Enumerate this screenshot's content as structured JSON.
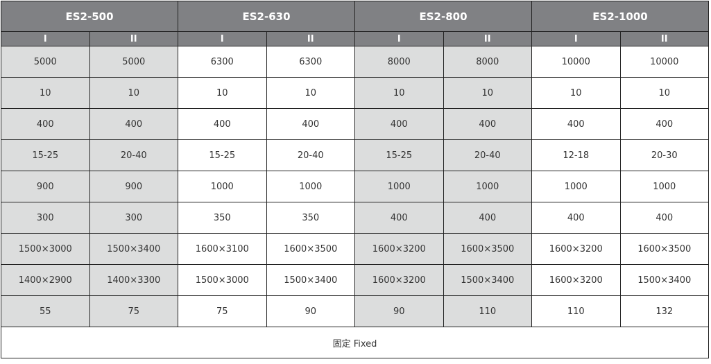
{
  "models": [
    "ES2-500",
    "ES2-630",
    "ES2-800",
    "ES2-1000"
  ],
  "sub_labels": [
    "I",
    "II"
  ],
  "shaded_models": [
    0,
    2
  ],
  "colors": {
    "header_bg": "#808184",
    "shaded_cell": "#dcdddd",
    "header_text": "#ffffff"
  },
  "rows": [
    [
      "5000",
      "5000",
      "6300",
      "6300",
      "8000",
      "8000",
      "10000",
      "10000"
    ],
    [
      "10",
      "10",
      "10",
      "10",
      "10",
      "10",
      "10",
      "10"
    ],
    [
      "400",
      "400",
      "400",
      "400",
      "400",
      "400",
      "400",
      "400"
    ],
    [
      "15-25",
      "20-40",
      "15-25",
      "20-40",
      "15-25",
      "20-40",
      "12-18",
      "20-30"
    ],
    [
      "900",
      "900",
      "1000",
      "1000",
      "1000",
      "1000",
      "1000",
      "1000"
    ],
    [
      "300",
      "300",
      "350",
      "350",
      "400",
      "400",
      "400",
      "400"
    ],
    [
      "1500×3000",
      "1500×3400",
      "1600×3100",
      "1600×3500",
      "1600×3200",
      "1600×3500",
      "1600×3200",
      "1600×3500"
    ],
    [
      "1400×2900",
      "1400×3300",
      "1500×3000",
      "1500×3400",
      "1600×3200",
      "1500×3400",
      "1600×3200",
      "1500×3400"
    ],
    [
      "55",
      "75",
      "75",
      "90",
      "90",
      "110",
      "110",
      "132"
    ]
  ],
  "footer": "固定 Fixed"
}
